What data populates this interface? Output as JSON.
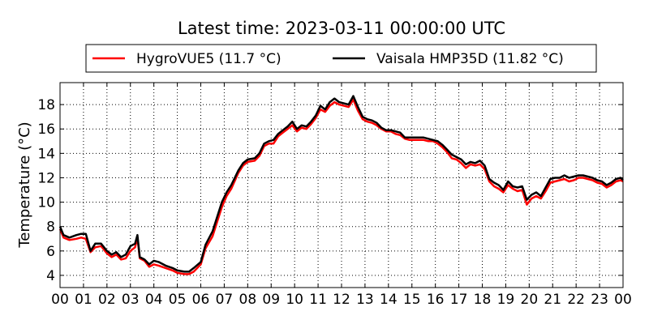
{
  "chart_data": {
    "type": "line",
    "title": "Latest time: 2023-03-11 00:00:00 UTC",
    "xlabel": "",
    "ylabel": "Temperature (°C)",
    "xlim": [
      0,
      24
    ],
    "ylim": [
      3,
      19.8
    ],
    "grid": true,
    "legend_placement": "top-center",
    "x_tick_labels": [
      "00",
      "01",
      "02",
      "03",
      "04",
      "05",
      "06",
      "07",
      "08",
      "09",
      "10",
      "11",
      "12",
      "13",
      "14",
      "15",
      "16",
      "17",
      "18",
      "19",
      "20",
      "21",
      "22",
      "23",
      "00"
    ],
    "y_ticks": [
      4,
      6,
      8,
      10,
      12,
      14,
      16,
      18
    ],
    "series": [
      {
        "name": "HygroVUE5 (11.7 °C)",
        "color": "#ff0000",
        "points": [
          [
            0,
            7.8
          ],
          [
            0.15,
            7.1
          ],
          [
            0.4,
            6.9
          ],
          [
            0.7,
            7.0
          ],
          [
            0.9,
            7.1
          ],
          [
            1.1,
            7.0
          ],
          [
            1.3,
            5.9
          ],
          [
            1.5,
            6.3
          ],
          [
            1.75,
            6.4
          ],
          [
            2.0,
            5.8
          ],
          [
            2.2,
            5.5
          ],
          [
            2.4,
            5.7
          ],
          [
            2.6,
            5.3
          ],
          [
            2.8,
            5.4
          ],
          [
            3.0,
            6.0
          ],
          [
            3.2,
            6.3
          ],
          [
            3.3,
            7.1
          ],
          [
            3.4,
            5.4
          ],
          [
            3.6,
            5.2
          ],
          [
            3.8,
            4.7
          ],
          [
            4.0,
            4.9
          ],
          [
            4.2,
            4.8
          ],
          [
            4.5,
            4.6
          ],
          [
            4.8,
            4.4
          ],
          [
            5.0,
            4.2
          ],
          [
            5.3,
            4.1
          ],
          [
            5.5,
            4.1
          ],
          [
            5.7,
            4.3
          ],
          [
            6.0,
            4.9
          ],
          [
            6.2,
            6.2
          ],
          [
            6.5,
            7.2
          ],
          [
            6.7,
            8.4
          ],
          [
            6.9,
            9.6
          ],
          [
            7.1,
            10.5
          ],
          [
            7.3,
            11.1
          ],
          [
            7.6,
            12.4
          ],
          [
            7.8,
            13.0
          ],
          [
            8.0,
            13.3
          ],
          [
            8.3,
            13.4
          ],
          [
            8.5,
            13.8
          ],
          [
            8.7,
            14.6
          ],
          [
            8.9,
            14.8
          ],
          [
            9.1,
            14.8
          ],
          [
            9.3,
            15.4
          ],
          [
            9.5,
            15.7
          ],
          [
            9.7,
            16.0
          ],
          [
            9.9,
            16.3
          ],
          [
            10.1,
            15.8
          ],
          [
            10.3,
            16.1
          ],
          [
            10.5,
            16.0
          ],
          [
            10.7,
            16.4
          ],
          [
            10.9,
            16.9
          ],
          [
            11.1,
            17.6
          ],
          [
            11.3,
            17.4
          ],
          [
            11.5,
            17.9
          ],
          [
            11.7,
            18.2
          ],
          [
            11.9,
            18.0
          ],
          [
            12.1,
            17.9
          ],
          [
            12.3,
            17.8
          ],
          [
            12.5,
            18.4
          ],
          [
            12.7,
            17.5
          ],
          [
            12.9,
            16.8
          ],
          [
            13.1,
            16.6
          ],
          [
            13.3,
            16.5
          ],
          [
            13.5,
            16.3
          ],
          [
            13.7,
            16.0
          ],
          [
            13.9,
            15.8
          ],
          [
            14.1,
            15.8
          ],
          [
            14.3,
            15.6
          ],
          [
            14.5,
            15.5
          ],
          [
            14.7,
            15.2
          ],
          [
            14.9,
            15.1
          ],
          [
            15.1,
            15.1
          ],
          [
            15.3,
            15.1
          ],
          [
            15.5,
            15.1
          ],
          [
            15.7,
            15.0
          ],
          [
            15.9,
            15.0
          ],
          [
            16.1,
            14.8
          ],
          [
            16.3,
            14.5
          ],
          [
            16.5,
            14.1
          ],
          [
            16.7,
            13.6
          ],
          [
            16.9,
            13.5
          ],
          [
            17.1,
            13.2
          ],
          [
            17.3,
            12.8
          ],
          [
            17.5,
            13.1
          ],
          [
            17.7,
            13.0
          ],
          [
            17.9,
            13.1
          ],
          [
            18.1,
            12.7
          ],
          [
            18.3,
            11.7
          ],
          [
            18.5,
            11.3
          ],
          [
            18.7,
            11.1
          ],
          [
            18.9,
            10.8
          ],
          [
            19.1,
            11.4
          ],
          [
            19.3,
            11.1
          ],
          [
            19.5,
            10.9
          ],
          [
            19.7,
            11.0
          ],
          [
            19.9,
            9.8
          ],
          [
            20.1,
            10.3
          ],
          [
            20.3,
            10.5
          ],
          [
            20.5,
            10.3
          ],
          [
            20.7,
            10.9
          ],
          [
            20.9,
            11.6
          ],
          [
            21.1,
            11.7
          ],
          [
            21.3,
            11.8
          ],
          [
            21.5,
            11.9
          ],
          [
            21.7,
            11.7
          ],
          [
            21.9,
            11.8
          ],
          [
            22.1,
            12.0
          ],
          [
            22.3,
            12.0
          ],
          [
            22.5,
            11.9
          ],
          [
            22.7,
            11.8
          ],
          [
            22.9,
            11.6
          ],
          [
            23.1,
            11.5
          ],
          [
            23.3,
            11.2
          ],
          [
            23.5,
            11.4
          ],
          [
            23.7,
            11.7
          ],
          [
            23.9,
            11.8
          ],
          [
            24.0,
            11.7
          ]
        ]
      },
      {
        "name": "Vaisala HMP35D (11.82 °C)",
        "color": "#000000",
        "points": [
          [
            0,
            8.0
          ],
          [
            0.15,
            7.3
          ],
          [
            0.4,
            7.1
          ],
          [
            0.7,
            7.3
          ],
          [
            0.9,
            7.4
          ],
          [
            1.1,
            7.4
          ],
          [
            1.3,
            6.0
          ],
          [
            1.5,
            6.6
          ],
          [
            1.75,
            6.6
          ],
          [
            2.0,
            6.0
          ],
          [
            2.2,
            5.7
          ],
          [
            2.4,
            5.9
          ],
          [
            2.6,
            5.5
          ],
          [
            2.8,
            5.7
          ],
          [
            3.0,
            6.4
          ],
          [
            3.2,
            6.6
          ],
          [
            3.3,
            7.3
          ],
          [
            3.4,
            5.5
          ],
          [
            3.6,
            5.3
          ],
          [
            3.8,
            4.9
          ],
          [
            4.0,
            5.2
          ],
          [
            4.2,
            5.1
          ],
          [
            4.5,
            4.8
          ],
          [
            4.8,
            4.6
          ],
          [
            5.0,
            4.4
          ],
          [
            5.3,
            4.3
          ],
          [
            5.5,
            4.3
          ],
          [
            5.7,
            4.6
          ],
          [
            6.0,
            5.1
          ],
          [
            6.2,
            6.5
          ],
          [
            6.5,
            7.6
          ],
          [
            6.7,
            8.8
          ],
          [
            6.9,
            10.0
          ],
          [
            7.1,
            10.8
          ],
          [
            7.3,
            11.4
          ],
          [
            7.6,
            12.6
          ],
          [
            7.8,
            13.2
          ],
          [
            8.0,
            13.5
          ],
          [
            8.3,
            13.6
          ],
          [
            8.5,
            14.0
          ],
          [
            8.7,
            14.8
          ],
          [
            8.9,
            15.0
          ],
          [
            9.1,
            15.1
          ],
          [
            9.3,
            15.6
          ],
          [
            9.5,
            15.9
          ],
          [
            9.7,
            16.2
          ],
          [
            9.9,
            16.6
          ],
          [
            10.1,
            16.0
          ],
          [
            10.3,
            16.3
          ],
          [
            10.5,
            16.2
          ],
          [
            10.7,
            16.6
          ],
          [
            10.9,
            17.1
          ],
          [
            11.1,
            17.9
          ],
          [
            11.3,
            17.6
          ],
          [
            11.5,
            18.2
          ],
          [
            11.7,
            18.5
          ],
          [
            11.9,
            18.2
          ],
          [
            12.1,
            18.1
          ],
          [
            12.3,
            18.0
          ],
          [
            12.5,
            18.7
          ],
          [
            12.7,
            17.8
          ],
          [
            12.9,
            17.0
          ],
          [
            13.1,
            16.8
          ],
          [
            13.3,
            16.7
          ],
          [
            13.5,
            16.5
          ],
          [
            13.7,
            16.1
          ],
          [
            13.9,
            15.9
          ],
          [
            14.1,
            15.9
          ],
          [
            14.3,
            15.8
          ],
          [
            14.5,
            15.7
          ],
          [
            14.7,
            15.3
          ],
          [
            14.9,
            15.3
          ],
          [
            15.1,
            15.3
          ],
          [
            15.3,
            15.3
          ],
          [
            15.5,
            15.3
          ],
          [
            15.7,
            15.2
          ],
          [
            15.9,
            15.1
          ],
          [
            16.1,
            15.0
          ],
          [
            16.3,
            14.7
          ],
          [
            16.5,
            14.3
          ],
          [
            16.7,
            13.9
          ],
          [
            16.9,
            13.7
          ],
          [
            17.1,
            13.5
          ],
          [
            17.3,
            13.1
          ],
          [
            17.5,
            13.3
          ],
          [
            17.7,
            13.2
          ],
          [
            17.9,
            13.4
          ],
          [
            18.1,
            13.0
          ],
          [
            18.3,
            11.9
          ],
          [
            18.5,
            11.6
          ],
          [
            18.7,
            11.4
          ],
          [
            18.9,
            11.0
          ],
          [
            19.1,
            11.7
          ],
          [
            19.3,
            11.3
          ],
          [
            19.5,
            11.2
          ],
          [
            19.7,
            11.3
          ],
          [
            19.9,
            10.2
          ],
          [
            20.1,
            10.6
          ],
          [
            20.3,
            10.8
          ],
          [
            20.5,
            10.5
          ],
          [
            20.7,
            11.2
          ],
          [
            20.9,
            11.9
          ],
          [
            21.1,
            12.0
          ],
          [
            21.3,
            12.0
          ],
          [
            21.5,
            12.2
          ],
          [
            21.7,
            12.0
          ],
          [
            21.9,
            12.1
          ],
          [
            22.1,
            12.2
          ],
          [
            22.3,
            12.2
          ],
          [
            22.5,
            12.1
          ],
          [
            22.7,
            12.0
          ],
          [
            22.9,
            11.8
          ],
          [
            23.1,
            11.7
          ],
          [
            23.3,
            11.4
          ],
          [
            23.5,
            11.6
          ],
          [
            23.7,
            11.9
          ],
          [
            23.9,
            12.0
          ],
          [
            24.0,
            11.82
          ]
        ]
      }
    ]
  }
}
